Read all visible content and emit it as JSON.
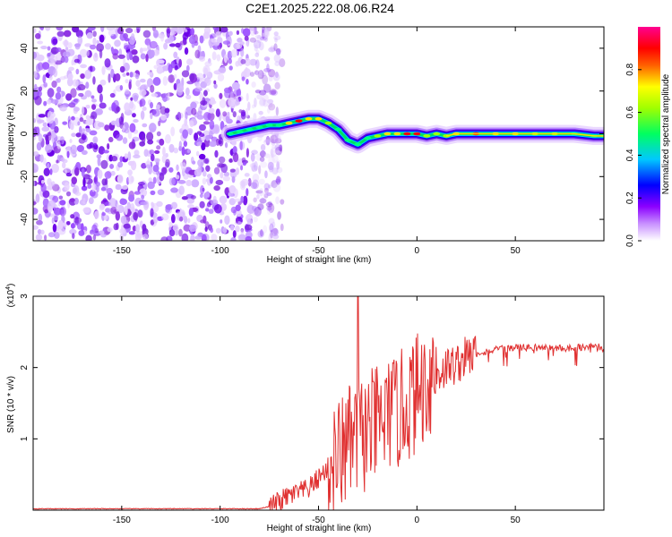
{
  "title": "C2E1.2025.222.08.06.R24",
  "colors": {
    "snr_line": "#e03030",
    "noise": "#8a2be2",
    "axis": "#000000"
  },
  "chart_data": [
    {
      "type": "heatmap",
      "xlabel": "Height of straight line (km)",
      "ylabel": "Frequency (Hz)",
      "xlim": [
        -195,
        95
      ],
      "ylim": [
        -50,
        50
      ],
      "xticks": [
        -150,
        -100,
        -50,
        0,
        50
      ],
      "yticks": [
        -40,
        -20,
        0,
        20,
        40
      ],
      "colorbar": {
        "label": "Normalized spectral amplitude",
        "range": [
          0,
          1
        ],
        "ticks": [
          0.0,
          0.2,
          0.4,
          0.6,
          0.8
        ],
        "colormap": [
          "#ffffff",
          "#8b00ff",
          "#0000ff",
          "#00ffff",
          "#00ff00",
          "#ffff00",
          "#ff0000",
          "#ff00ff"
        ]
      },
      "noise_region_x": [
        -195,
        -73
      ],
      "ridge": {
        "x": [
          -95,
          -90,
          -85,
          -80,
          -75,
          -70,
          -65,
          -60,
          -55,
          -50,
          -45,
          -40,
          -35,
          -30,
          -25,
          -20,
          -15,
          -10,
          -5,
          0,
          5,
          10,
          15,
          20,
          30,
          40,
          50,
          60,
          70,
          80,
          90,
          95
        ],
        "y": [
          0,
          1,
          2,
          3,
          4,
          4,
          5,
          6,
          7,
          7,
          5,
          2,
          -3,
          -5,
          -2,
          -1,
          0,
          0,
          0,
          0,
          -1,
          0,
          -1,
          0,
          0,
          0,
          0,
          0,
          0,
          0,
          -1,
          -1
        ],
        "amplitude": [
          0.3,
          0.35,
          0.4,
          0.45,
          0.5,
          0.55,
          0.7,
          0.8,
          0.75,
          0.7,
          0.6,
          0.55,
          0.4,
          0.35,
          0.5,
          0.6,
          0.7,
          0.75,
          0.8,
          0.85,
          0.6,
          0.65,
          0.6,
          0.75,
          0.8,
          0.78,
          0.7,
          0.65,
          0.6,
          0.55,
          0.5,
          0.4
        ]
      }
    },
    {
      "type": "line",
      "xlabel": "Height of straight line (km)",
      "ylabel": "SNR (10 * v/v)",
      "y_multiplier": "(x10",
      "y_exponent": "4",
      "y_multiplier_close": ")",
      "xlim": [
        -195,
        95
      ],
      "ylim": [
        0,
        3
      ],
      "xticks": [
        -150,
        -100,
        -50,
        0,
        50
      ],
      "yticks": [
        1,
        2,
        3
      ],
      "series": [
        {
          "x": [
            -195,
            -80,
            -75,
            -70,
            -65,
            -60,
            -55,
            -50,
            -45,
            -40,
            -35,
            -30,
            -25,
            -20,
            -15,
            -10,
            -5,
            0,
            5,
            10,
            15,
            20,
            25,
            30,
            40,
            50,
            60,
            70,
            80,
            90,
            95
          ],
          "y": [
            0.02,
            0.02,
            0.05,
            0.12,
            0.2,
            0.25,
            0.3,
            0.45,
            0.6,
            0.75,
            0.9,
            1.0,
            1.1,
            1.2,
            1.3,
            1.35,
            1.5,
            1.65,
            1.8,
            1.9,
            2.0,
            2.05,
            2.15,
            2.2,
            2.25,
            2.28,
            2.28,
            2.27,
            2.28,
            2.3,
            2.27
          ],
          "spikes": [
            {
              "x": -30,
              "y": 3.0
            },
            {
              "x": 8,
              "y": 2.42
            },
            {
              "x": -36,
              "y": 1.5
            },
            {
              "x": -13,
              "y": 1.95
            }
          ]
        }
      ]
    }
  ]
}
